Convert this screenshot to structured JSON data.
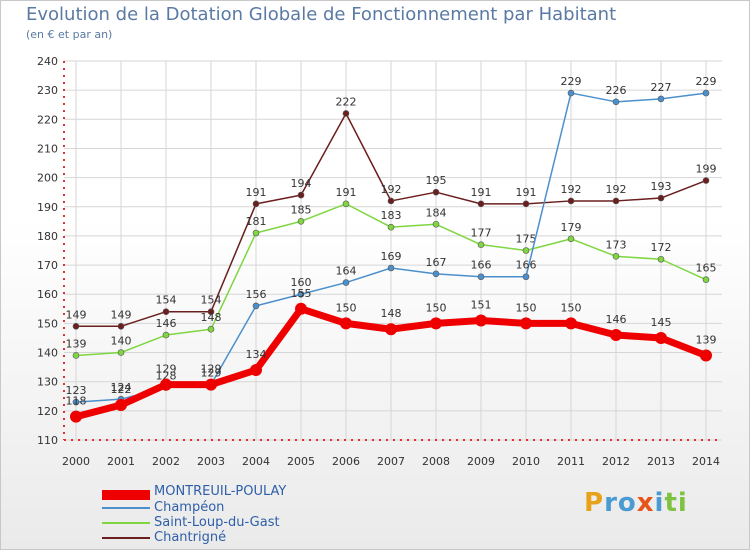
{
  "chart_data": {
    "type": "line",
    "title": "Evolution de la Dotation Globale de Fonctionnement par Habitant",
    "subtitle": "(en € et par an)",
    "xlabel": "",
    "ylabel": "",
    "x": [
      2000,
      2001,
      2002,
      2003,
      2004,
      2005,
      2006,
      2007,
      2008,
      2009,
      2010,
      2011,
      2012,
      2013,
      2014
    ],
    "ylim": [
      110,
      240
    ],
    "yticks": [
      110,
      120,
      130,
      140,
      150,
      160,
      170,
      180,
      190,
      200,
      210,
      220,
      230,
      240
    ],
    "legend_position": "bottom-left",
    "series": [
      {
        "name": "Chantrigné",
        "color": "#6b1e1e",
        "values": [
          149,
          149,
          154,
          154,
          191,
          194,
          222,
          192,
          195,
          191,
          191,
          192,
          192,
          193,
          199
        ]
      },
      {
        "name": "Saint-Loup-du-Gast",
        "color": "#7fd640",
        "values": [
          139,
          140,
          146,
          148,
          181,
          185,
          191,
          183,
          184,
          177,
          175,
          179,
          173,
          172,
          165
        ]
      },
      {
        "name": "Champéon",
        "color": "#4b90cc",
        "values": [
          123,
          124,
          128,
          129,
          156,
          160,
          164,
          169,
          167,
          166,
          166,
          229,
          226,
          227,
          229
        ]
      },
      {
        "name": "MONTREUIL-POULAY",
        "color": "#ee0000",
        "values": [
          118,
          122,
          129,
          129,
          134,
          155,
          150,
          148,
          150,
          151,
          150,
          150,
          146,
          145,
          139
        ]
      }
    ]
  },
  "legend": [
    {
      "name": "MONTREUIL-POULAY",
      "color": "#ee0000"
    },
    {
      "name": "Champéon",
      "color": "#4b90cc"
    },
    {
      "name": "Saint-Loup-du-Gast",
      "color": "#7fd640"
    },
    {
      "name": "Chantrigné",
      "color": "#6b1e1e"
    }
  ],
  "brand": {
    "letters": [
      "P",
      "r",
      "o",
      "x",
      "i",
      "t",
      "i"
    ],
    "colors": [
      "#e8a21a",
      "#4a9ad4",
      "#4a9ad4",
      "#e8531a",
      "#4a9ad4",
      "#7fc241",
      "#7fc241"
    ]
  }
}
